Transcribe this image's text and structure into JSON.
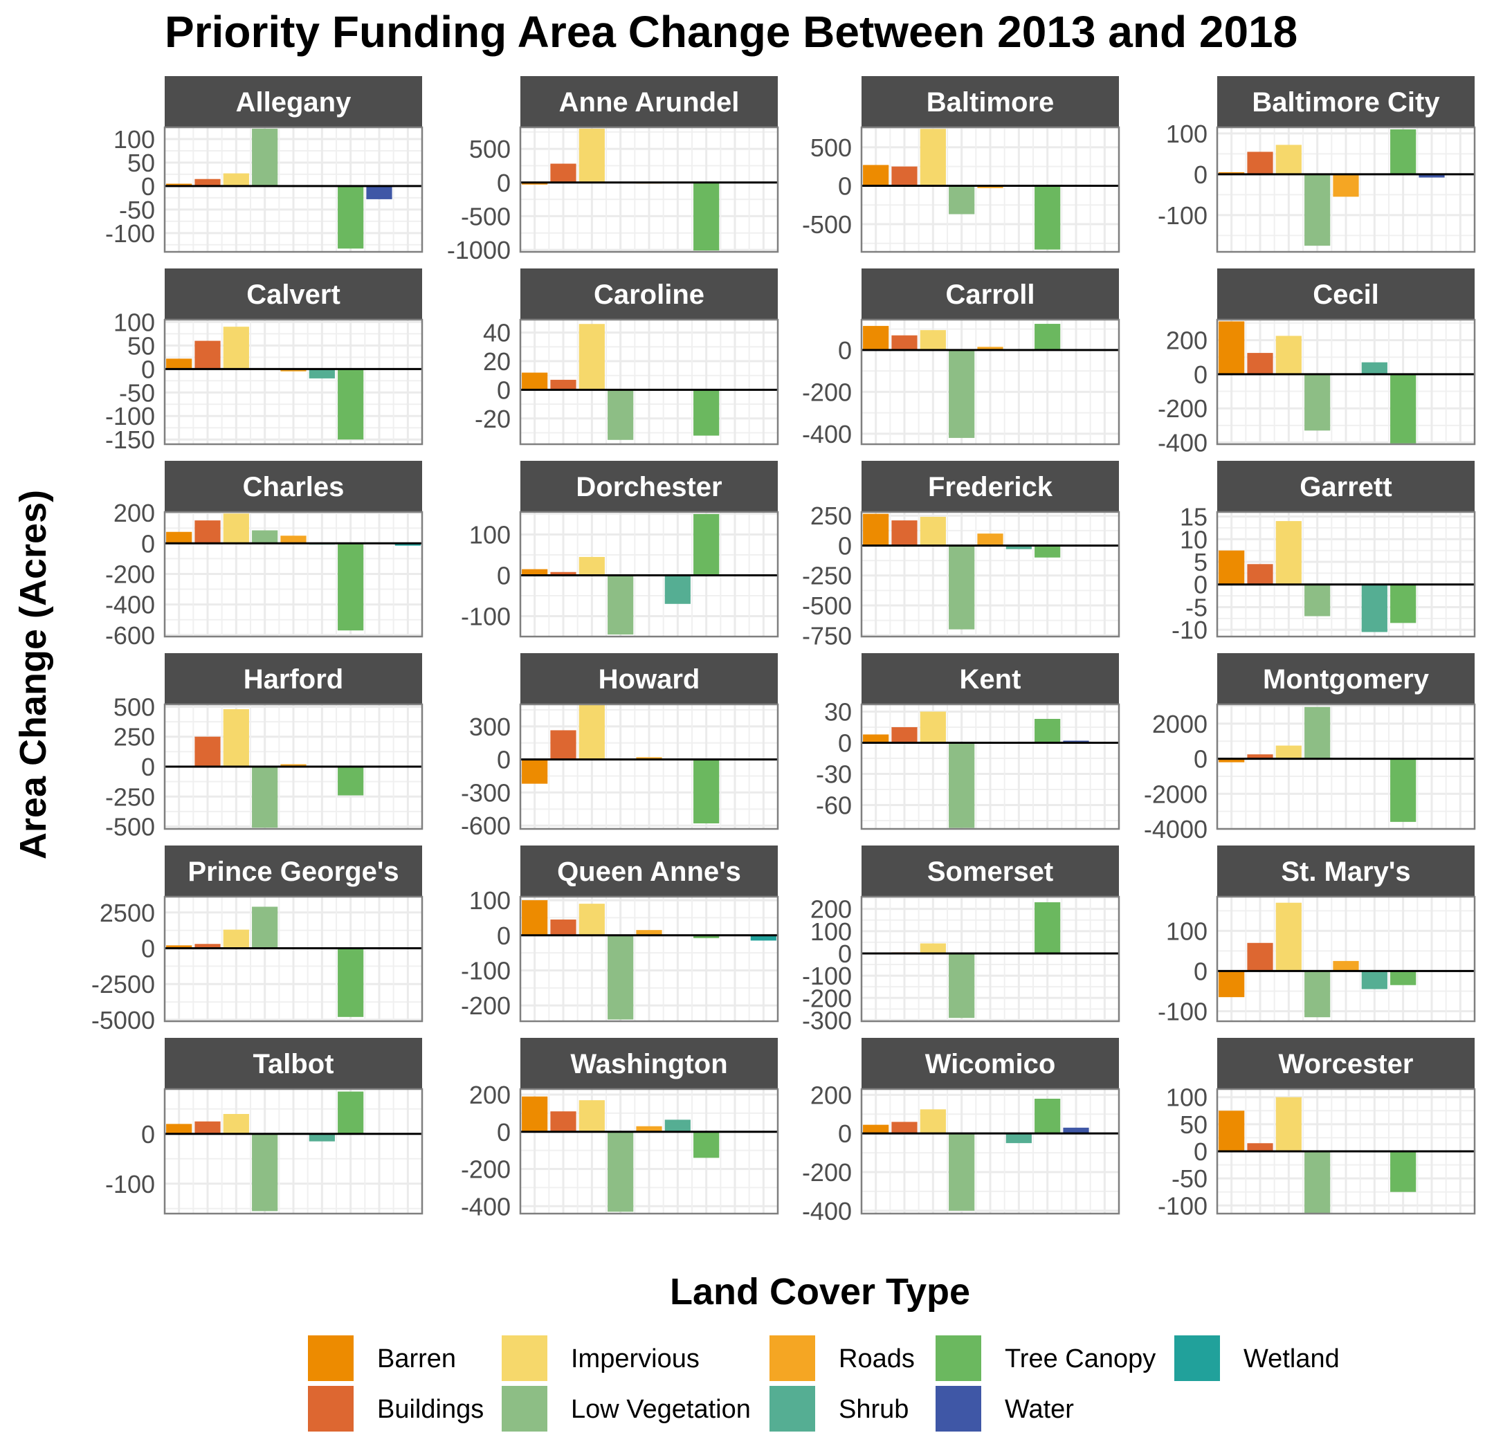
{
  "chart_data": {
    "type": "bar",
    "title": "Priority Funding Area Change Between 2013 and 2018",
    "ylabel": "Area Change (Acres)",
    "xlabel": "",
    "grid": true,
    "legend_position": "bottom",
    "legend": {
      "title": "Land Cover Type",
      "items": [
        {
          "name": "Barren",
          "color": "#ED8B00"
        },
        {
          "name": "Buildings",
          "color": "#DD6731"
        },
        {
          "name": "Impervious",
          "color": "#F6D86B"
        },
        {
          "name": "Low Vegetation",
          "color": "#8DBE85"
        },
        {
          "name": "Roads",
          "color": "#F5A623"
        },
        {
          "name": "Shrub",
          "color": "#55AE93"
        },
        {
          "name": "Tree Canopy",
          "color": "#6BB85F"
        },
        {
          "name": "Water",
          "color": "#3F57A6"
        },
        {
          "name": "Wetland",
          "color": "#21A19B"
        }
      ]
    },
    "categories": [
      "Barren",
      "Buildings",
      "Impervious",
      "Low Vegetation",
      "Roads",
      "Shrub",
      "Tree Canopy",
      "Water",
      "Wetland"
    ],
    "panels": [
      {
        "name": "Allegany",
        "ylim": [
          -140,
          125
        ],
        "yticks": [
          -100,
          -50,
          0,
          50,
          100
        ],
        "values": [
          5,
          15,
          27,
          122,
          0,
          0,
          -133,
          -28,
          0
        ]
      },
      {
        "name": "Anne Arundel",
        "ylim": [
          -1030,
          820
        ],
        "yticks": [
          -1000,
          -500,
          0,
          500
        ],
        "values": [
          -30,
          280,
          800,
          -10,
          -15,
          0,
          -1010,
          0,
          0
        ]
      },
      {
        "name": "Baltimore",
        "ylim": [
          -860,
          760
        ],
        "yticks": [
          -500,
          0,
          500
        ],
        "values": [
          270,
          250,
          740,
          -370,
          -30,
          0,
          -830,
          0,
          0
        ]
      },
      {
        "name": "Baltimore City",
        "ylim": [
          -190,
          115
        ],
        "yticks": [
          -100,
          0,
          100
        ],
        "values": [
          5,
          55,
          72,
          -175,
          -55,
          0,
          110,
          -8,
          0
        ]
      },
      {
        "name": "Calvert",
        "ylim": [
          -160,
          105
        ],
        "yticks": [
          -150,
          -100,
          -50,
          0,
          50,
          100
        ],
        "values": [
          22,
          60,
          90,
          2,
          -5,
          -20,
          -150,
          0,
          0
        ]
      },
      {
        "name": "Caroline",
        "ylim": [
          -38,
          49
        ],
        "yticks": [
          -20,
          0,
          20,
          40
        ],
        "values": [
          12,
          7,
          46,
          -35,
          0,
          0,
          -32,
          0,
          0
        ]
      },
      {
        "name": "Carroll",
        "ylim": [
          -450,
          145
        ],
        "yticks": [
          -400,
          -200,
          0
        ],
        "values": [
          115,
          70,
          95,
          -420,
          15,
          0,
          125,
          0,
          0
        ]
      },
      {
        "name": "Cecil",
        "ylim": [
          -410,
          320
        ],
        "yticks": [
          -400,
          -200,
          0,
          200
        ],
        "values": [
          310,
          125,
          225,
          -330,
          0,
          70,
          -405,
          0,
          0
        ]
      },
      {
        "name": "Charles",
        "ylim": [
          -610,
          205
        ],
        "yticks": [
          -600,
          -400,
          -200,
          0,
          200
        ],
        "values": [
          75,
          150,
          195,
          85,
          50,
          -8,
          -570,
          0,
          -15
        ]
      },
      {
        "name": "Dorchester",
        "ylim": [
          -150,
          155
        ],
        "yticks": [
          -100,
          0,
          100
        ],
        "values": [
          15,
          8,
          45,
          -145,
          0,
          -70,
          150,
          0,
          0
        ]
      },
      {
        "name": "Frederick",
        "ylim": [
          -760,
          280
        ],
        "yticks": [
          -750,
          -500,
          -250,
          0,
          250
        ],
        "values": [
          265,
          210,
          240,
          -700,
          100,
          -30,
          -100,
          0,
          0
        ]
      },
      {
        "name": "Garrett",
        "ylim": [
          -11.5,
          16
        ],
        "yticks": [
          -10,
          -5,
          0,
          5,
          10,
          15
        ],
        "values": [
          7.5,
          4.5,
          14,
          -7,
          0,
          -10.5,
          -8.5,
          0,
          0
        ]
      },
      {
        "name": "Harford",
        "ylim": [
          -520,
          520
        ],
        "yticks": [
          -500,
          -250,
          0,
          250,
          500
        ],
        "values": [
          0,
          250,
          480,
          -510,
          20,
          0,
          -240,
          0,
          0
        ]
      },
      {
        "name": "Howard",
        "ylim": [
          -630,
          500
        ],
        "yticks": [
          -600,
          -300,
          0,
          300
        ],
        "values": [
          -220,
          265,
          495,
          0,
          20,
          0,
          -580,
          0,
          0
        ]
      },
      {
        "name": "Kent",
        "ylim": [
          -83,
          37
        ],
        "yticks": [
          -60,
          -30,
          0,
          30
        ],
        "values": [
          8,
          15,
          30,
          -82,
          0,
          0,
          23,
          2,
          0
        ]
      },
      {
        "name": "Montgomery",
        "ylim": [
          -4000,
          3100
        ],
        "yticks": [
          -4000,
          -2000,
          0,
          2000
        ],
        "values": [
          -200,
          250,
          750,
          2950,
          0,
          0,
          -3600,
          0,
          0
        ]
      },
      {
        "name": "Prince George's",
        "ylim": [
          -5100,
          3600
        ],
        "yticks": [
          -5000,
          -2500,
          0,
          2500
        ],
        "values": [
          200,
          300,
          1300,
          2900,
          0,
          0,
          -4800,
          0,
          0
        ]
      },
      {
        "name": "Queen Anne's",
        "ylim": [
          -245,
          110
        ],
        "yticks": [
          -200,
          -100,
          0,
          100
        ],
        "values": [
          100,
          45,
          90,
          -240,
          15,
          0,
          -8,
          0,
          -15
        ]
      },
      {
        "name": "Somerset",
        "ylim": [
          -305,
          255
        ],
        "yticks": [
          -300,
          -200,
          -100,
          0,
          100,
          200
        ],
        "values": [
          0,
          5,
          45,
          -290,
          0,
          0,
          230,
          0,
          0
        ]
      },
      {
        "name": "St. Mary's",
        "ylim": [
          -125,
          185
        ],
        "yticks": [
          -100,
          0,
          100
        ],
        "values": [
          -65,
          70,
          170,
          -115,
          25,
          -45,
          -35,
          0,
          0
        ]
      },
      {
        "name": "Talbot",
        "ylim": [
          -160,
          90
        ],
        "yticks": [
          -100,
          0
        ],
        "values": [
          20,
          25,
          40,
          -155,
          0,
          -15,
          85,
          0,
          0
        ]
      },
      {
        "name": "Washington",
        "ylim": [
          -440,
          230
        ],
        "yticks": [
          -400,
          -200,
          0,
          200
        ],
        "values": [
          190,
          110,
          170,
          -430,
          30,
          65,
          -140,
          5,
          0
        ]
      },
      {
        "name": "Wicomico",
        "ylim": [
          -415,
          230
        ],
        "yticks": [
          -400,
          -200,
          0,
          200
        ],
        "values": [
          45,
          60,
          125,
          -400,
          0,
          -50,
          180,
          30,
          0
        ]
      },
      {
        "name": "Worcester",
        "ylim": [
          -115,
          115
        ],
        "yticks": [
          -100,
          -50,
          0,
          50,
          100
        ],
        "values": [
          75,
          15,
          100,
          -115,
          0,
          -2,
          -75,
          0,
          0
        ]
      }
    ]
  }
}
